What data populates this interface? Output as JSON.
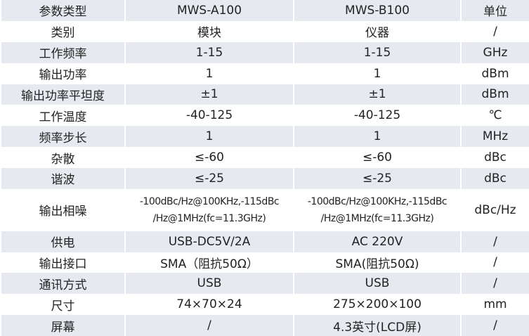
{
  "table": {
    "header": [
      "参数类型",
      "MWS-A100",
      "MWS-B100",
      "单位"
    ],
    "rows": [
      [
        "类别",
        "模块",
        "仪器",
        "/"
      ],
      [
        "工作频率",
        "1-15",
        "1-15",
        "GHz"
      ],
      [
        "输出功率",
        "1",
        "1",
        "dBm"
      ],
      [
        "输出功率平坦度",
        "±1",
        "±1",
        "dBm"
      ],
      [
        "工作温度",
        "-40-125",
        "-40-125",
        "℃"
      ],
      [
        "频率步长",
        "1",
        "1",
        "MHz"
      ],
      [
        "杂散",
        "≤-60",
        "≤-60",
        "dBc"
      ],
      [
        "谐波",
        "≤-25",
        "≤-25",
        "dBc"
      ],
      [
        "输出相噪",
        [
          "-100dBc/Hz@100KHz,-115dBc",
          "/Hz@1MHz(fc=11.3GHz)"
        ],
        [
          "-100dBc/Hz@100KHz,-115dBc",
          "/Hz@1MHz(fc=11.3GHz)"
        ],
        "dBc/Hz"
      ],
      [
        "供电",
        "USB-DC5V/2A",
        "AC 220V",
        "/"
      ],
      [
        "输出接口",
        "SMA（阻抗50Ω）",
        "SMA(阻抗50Ω)",
        "/"
      ],
      [
        "通讯方式",
        "USB",
        "USB",
        "/"
      ],
      [
        "尺寸",
        "74×70×24",
        "275×200×100",
        "mm"
      ],
      [
        "屏幕",
        "/",
        "4.3英寸(LCD屏)",
        "/"
      ]
    ]
  }
}
